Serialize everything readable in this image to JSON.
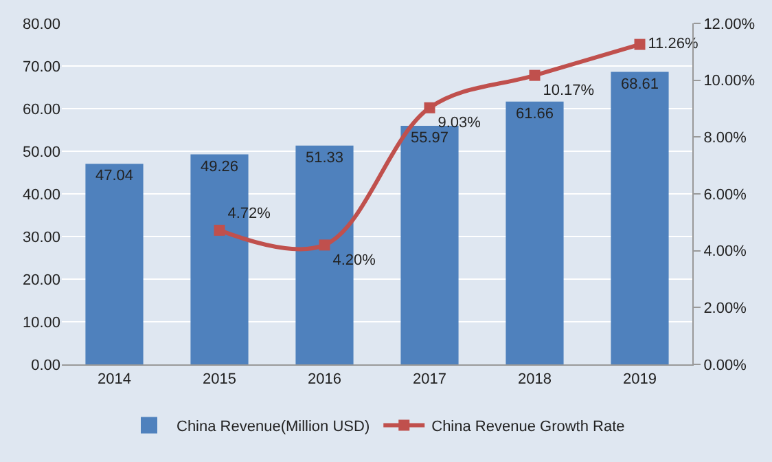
{
  "chart_data": {
    "type": "bar",
    "categories": [
      "2014",
      "2015",
      "2016",
      "2017",
      "2018",
      "2019"
    ],
    "series": [
      {
        "name": "China Revenue(Million USD)",
        "color": "#4f81bd",
        "values": [
          47.04,
          49.26,
          51.33,
          55.97,
          61.66,
          68.61
        ],
        "value_labels": [
          "47.04",
          "49.26",
          "51.33",
          "55.97",
          "61.66",
          "68.61"
        ]
      },
      {
        "name": "China Revenue Growth Rate",
        "type": "line",
        "axis": "y2",
        "color": "#c0504d",
        "marker": "square",
        "values": [
          null,
          4.72,
          4.2,
          9.03,
          10.17,
          11.26
        ],
        "value_labels": [
          null,
          "4.72%",
          "4.20%",
          "9.03%",
          "10.17%",
          "11.26%"
        ]
      }
    ],
    "ylim": [
      0,
      80
    ],
    "yticks": [
      {
        "value": 0,
        "label": "0.00"
      },
      {
        "value": 10,
        "label": "10.00"
      },
      {
        "value": 20,
        "label": "20.00"
      },
      {
        "value": 30,
        "label": "30.00"
      },
      {
        "value": 40,
        "label": "40.00"
      },
      {
        "value": 50,
        "label": "50.00"
      },
      {
        "value": 60,
        "label": "60.00"
      },
      {
        "value": 70,
        "label": "70.00"
      },
      {
        "value": 80,
        "label": "80.00"
      }
    ],
    "y2lim": [
      0,
      12
    ],
    "y2ticks": [
      {
        "value": 0,
        "label": "0.00%"
      },
      {
        "value": 2,
        "label": "2.00%"
      },
      {
        "value": 4,
        "label": "4.00%"
      },
      {
        "value": 6,
        "label": "6.00%"
      },
      {
        "value": 8,
        "label": "8.00%"
      },
      {
        "value": 10,
        "label": "10.00%"
      },
      {
        "value": 12,
        "label": "12.00%"
      }
    ],
    "grid": "y",
    "legend": "bottom"
  }
}
